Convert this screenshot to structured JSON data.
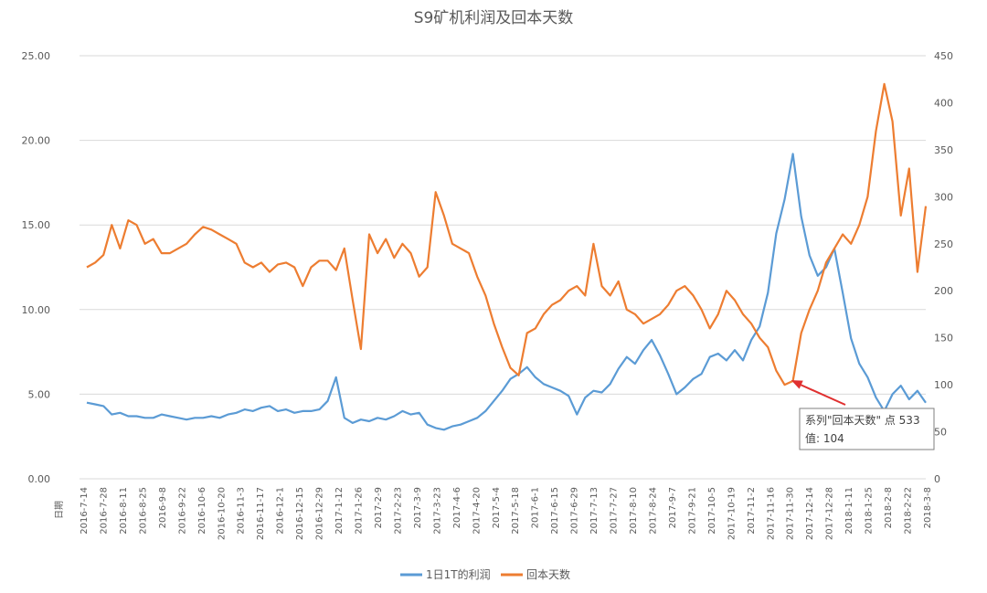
{
  "chart_data": {
    "type": "line",
    "title": "S9矿机利润及回本天数",
    "xlabel": "日期",
    "left_axis": {
      "ticks": [
        "0.00",
        "5.00",
        "10.00",
        "15.00",
        "20.00",
        "25.00"
      ],
      "min": 0,
      "max": 25
    },
    "right_axis": {
      "ticks": [
        "0",
        "50",
        "100",
        "150",
        "200",
        "250",
        "300",
        "350",
        "400",
        "450"
      ],
      "min": 0,
      "max": 450
    },
    "x_tick_labels": [
      "2016-7-14",
      "2016-7-28",
      "2016-8-11",
      "2016-8-25",
      "2016-9-8",
      "2016-9-22",
      "2016-10-6",
      "2016-10-20",
      "2016-11-3",
      "2016-11-17",
      "2016-12-1",
      "2016-12-15",
      "2016-12-29",
      "2017-1-12",
      "2017-1-26",
      "2017-2-9",
      "2017-2-23",
      "2017-3-9",
      "2017-3-23",
      "2017-4-6",
      "2017-4-20",
      "2017-5-4",
      "2017-5-18",
      "2017-6-1",
      "2017-6-15",
      "2017-6-29",
      "2017-7-13",
      "2017-7-27",
      "2017-8-10",
      "2017-8-24",
      "2017-9-7",
      "2017-9-21",
      "2017-10-5",
      "2017-10-19",
      "2017-11-2",
      "2017-11-16",
      "2017-11-30",
      "2017-12-14",
      "2017-12-28",
      "2018-1-11",
      "2018-1-25",
      "2018-2-8",
      "2018-2-22",
      "2018-3-8"
    ],
    "series": [
      {
        "name": "1日1T的利润",
        "axis": "left",
        "color": "#5b9bd5",
        "values": [
          4.5,
          4.4,
          4.3,
          3.8,
          3.9,
          3.7,
          3.7,
          3.6,
          3.6,
          3.8,
          3.7,
          3.6,
          3.5,
          3.6,
          3.6,
          3.7,
          3.6,
          3.8,
          3.9,
          4.1,
          4.0,
          4.2,
          4.3,
          4.0,
          4.1,
          3.9,
          4.0,
          4.0,
          4.1,
          4.6,
          6.0,
          3.6,
          3.3,
          3.5,
          3.4,
          3.6,
          3.5,
          3.7,
          4.0,
          3.8,
          3.9,
          3.2,
          3.0,
          2.9,
          3.1,
          3.2,
          3.4,
          3.6,
          4.0,
          4.6,
          5.2,
          5.9,
          6.2,
          6.6,
          6.0,
          5.6,
          5.4,
          5.2,
          4.9,
          3.8,
          4.8,
          5.2,
          5.1,
          5.6,
          6.5,
          7.2,
          6.8,
          7.6,
          8.2,
          7.3,
          6.2,
          5.0,
          5.4,
          5.9,
          6.2,
          7.2,
          7.4,
          7.0,
          7.6,
          7.0,
          8.2,
          9.0,
          11.0,
          14.5,
          16.5,
          19.2,
          15.5,
          13.2,
          12.0,
          12.5,
          13.6,
          11.0,
          8.3,
          6.8,
          6.0,
          4.8,
          4.0,
          5.0,
          5.5,
          4.7,
          5.2,
          4.5
        ]
      },
      {
        "name": "回本天数",
        "axis": "right",
        "color": "#ed7d31",
        "values": [
          225,
          230,
          238,
          270,
          245,
          275,
          270,
          250,
          255,
          240,
          240,
          245,
          250,
          260,
          268,
          265,
          260,
          255,
          250,
          230,
          225,
          230,
          220,
          228,
          230,
          225,
          205,
          225,
          232,
          232,
          222,
          245,
          190,
          138,
          260,
          240,
          255,
          235,
          250,
          240,
          215,
          225,
          305,
          280,
          250,
          245,
          240,
          215,
          195,
          165,
          140,
          118,
          110,
          155,
          160,
          175,
          185,
          190,
          200,
          205,
          195,
          250,
          205,
          195,
          210,
          180,
          175,
          165,
          170,
          175,
          185,
          200,
          205,
          195,
          180,
          160,
          175,
          200,
          190,
          175,
          165,
          150,
          140,
          115,
          100,
          104,
          155,
          180,
          200,
          230,
          245,
          260,
          250,
          270,
          300,
          370,
          420,
          380,
          280,
          330,
          220,
          290
        ]
      }
    ],
    "tooltip": {
      "line1": "系列\"回本天数\" 点 533",
      "line2": "值: 104",
      "point_index": 85
    },
    "legend": {
      "position": "bottom"
    }
  }
}
